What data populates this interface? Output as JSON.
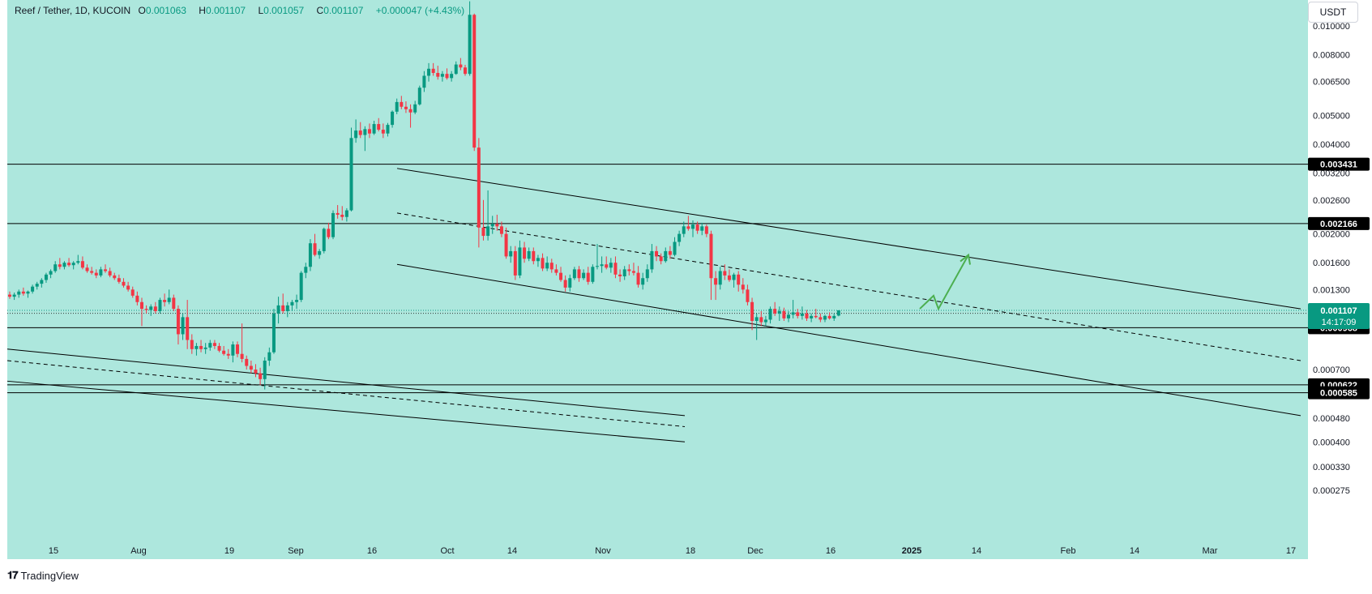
{
  "header": {
    "symbol": "Reef / Tether, 1D, KUCOIN",
    "o_label": "O",
    "o_value": "0.001063",
    "h_label": "H",
    "h_value": "0.001107",
    "l_label": "L",
    "l_value": "0.001057",
    "c_label": "C",
    "c_value": "0.001107",
    "change": "+0.000047 (+4.43%)"
  },
  "currency_button": "USDT",
  "brand": "TradingView",
  "colors": {
    "background": "#ade7dd",
    "up": "#089981",
    "down": "#f23645",
    "line": "#000000",
    "projection": "#4caf50",
    "last_price_bg": "#089981"
  },
  "chart_data": {
    "type": "candlestick",
    "scale": "log",
    "x_axis_labels": [
      "15",
      "Aug",
      "19",
      "Sep",
      "16",
      "Oct",
      "14",
      "Nov",
      "18",
      "Dec",
      "16",
      "2025",
      "14",
      "Feb",
      "14",
      "Mar",
      "17"
    ],
    "y_axis_labels": [
      "0.010000",
      "0.008000",
      "0.006500",
      "0.005000",
      "0.004000",
      "0.003200",
      "0.002600",
      "0.002000",
      "0.001600",
      "0.001300",
      "0.000700",
      "0.000480",
      "0.000400",
      "0.000330",
      "0.000275"
    ],
    "horizontal_levels": [
      {
        "price": 0.003431,
        "label": "0.003431"
      },
      {
        "price": 0.002166,
        "label": "0.002166"
      },
      {
        "price": 0.000968,
        "label": "0.000968"
      },
      {
        "price": 0.000622,
        "label": "0.000622"
      },
      {
        "price": 0.000585,
        "label": "0.000585"
      }
    ],
    "marker_labels": [
      {
        "price": 0.001082,
        "label": "0.001082"
      }
    ],
    "last_price": {
      "price": 0.001107,
      "label": "0.001107",
      "countdown": "14:17:09"
    },
    "candles": [
      [
        0.00125,
        0.00128,
        0.00121,
        0.00123
      ],
      [
        0.00123,
        0.00127,
        0.0012,
        0.00125
      ],
      [
        0.00125,
        0.0013,
        0.00122,
        0.00128
      ],
      [
        0.00128,
        0.00132,
        0.00124,
        0.00126
      ],
      [
        0.00126,
        0.00129,
        0.00122,
        0.00128
      ],
      [
        0.00128,
        0.00135,
        0.00126,
        0.00133
      ],
      [
        0.00133,
        0.00138,
        0.0013,
        0.00136
      ],
      [
        0.00136,
        0.00142,
        0.00132,
        0.0014
      ],
      [
        0.0014,
        0.00148,
        0.00137,
        0.00146
      ],
      [
        0.00146,
        0.00152,
        0.00142,
        0.0015
      ],
      [
        0.0015,
        0.00162,
        0.00148,
        0.00158
      ],
      [
        0.00158,
        0.00166,
        0.00152,
        0.00155
      ],
      [
        0.00155,
        0.00162,
        0.00152,
        0.0016
      ],
      [
        0.0016,
        0.00166,
        0.00155,
        0.00157
      ],
      [
        0.00157,
        0.00162,
        0.00152,
        0.0016
      ],
      [
        0.0016,
        0.0017,
        0.00158,
        0.00162
      ],
      [
        0.00162,
        0.00168,
        0.00152,
        0.00154
      ],
      [
        0.00154,
        0.00158,
        0.00148,
        0.0015
      ],
      [
        0.0015,
        0.00155,
        0.00146,
        0.00148
      ],
      [
        0.00148,
        0.00152,
        0.00142,
        0.00145
      ],
      [
        0.00145,
        0.00155,
        0.00143,
        0.00152
      ],
      [
        0.00152,
        0.00158,
        0.00148,
        0.0015
      ],
      [
        0.0015,
        0.00154,
        0.00143,
        0.00145
      ],
      [
        0.00145,
        0.00148,
        0.0014,
        0.00142
      ],
      [
        0.00142,
        0.00146,
        0.00136,
        0.00138
      ],
      [
        0.00138,
        0.00142,
        0.00132,
        0.00134
      ],
      [
        0.00134,
        0.00138,
        0.00128,
        0.0013
      ],
      [
        0.0013,
        0.00133,
        0.00122,
        0.00124
      ],
      [
        0.00124,
        0.00128,
        0.00115,
        0.00118
      ],
      [
        0.00118,
        0.00122,
        0.00098,
        0.00112
      ],
      [
        0.00112,
        0.00115,
        0.00108,
        0.00111
      ],
      [
        0.00111,
        0.00116,
        0.00106,
        0.00114
      ],
      [
        0.00114,
        0.00118,
        0.00108,
        0.0011
      ],
      [
        0.0011,
        0.00122,
        0.00108,
        0.0012
      ],
      [
        0.0012,
        0.00126,
        0.00114,
        0.00118
      ],
      [
        0.00118,
        0.0013,
        0.00116,
        0.00122
      ],
      [
        0.00122,
        0.00125,
        0.0011,
        0.00112
      ],
      [
        0.00112,
        0.00115,
        0.00085,
        0.00092
      ],
      [
        0.00092,
        0.00108,
        0.00088,
        0.00105
      ],
      [
        0.00105,
        0.0012,
        0.00082,
        0.00088
      ],
      [
        0.00088,
        0.00092,
        0.00079,
        0.00082
      ],
      [
        0.00082,
        0.00086,
        0.00078,
        0.00084
      ],
      [
        0.00084,
        0.00088,
        0.0008,
        0.00082
      ],
      [
        0.00082,
        0.00086,
        0.00079,
        0.00083
      ],
      [
        0.00083,
        0.00088,
        0.00081,
        0.00086
      ],
      [
        0.00086,
        0.00088,
        0.00082,
        0.00084
      ],
      [
        0.00084,
        0.00086,
        0.0008,
        0.00081
      ],
      [
        0.00081,
        0.00084,
        0.00078,
        0.00079
      ],
      [
        0.00079,
        0.00082,
        0.00076,
        0.00078
      ],
      [
        0.00078,
        0.00087,
        0.00074,
        0.00085
      ],
      [
        0.00085,
        0.00087,
        0.00077,
        0.00079
      ],
      [
        0.00079,
        0.001,
        0.00074,
        0.00076
      ],
      [
        0.00076,
        0.00078,
        0.0007,
        0.00072
      ],
      [
        0.00072,
        0.00075,
        0.00068,
        0.0007
      ],
      [
        0.0007,
        0.00073,
        0.00066,
        0.00068
      ],
      [
        0.00068,
        0.00071,
        0.00062,
        0.00065
      ],
      [
        0.00065,
        0.00077,
        0.0006,
        0.00075
      ],
      [
        0.00075,
        0.00083,
        0.00072,
        0.0008
      ],
      [
        0.0008,
        0.00112,
        0.00079,
        0.00108
      ],
      [
        0.00108,
        0.00123,
        0.001,
        0.00115
      ],
      [
        0.00115,
        0.00126,
        0.00108,
        0.0011
      ],
      [
        0.0011,
        0.00118,
        0.00105,
        0.00115
      ],
      [
        0.00115,
        0.0012,
        0.0011,
        0.00118
      ],
      [
        0.00118,
        0.00125,
        0.00112,
        0.0012
      ],
      [
        0.0012,
        0.0015,
        0.00118,
        0.00148
      ],
      [
        0.00148,
        0.0016,
        0.00142,
        0.00155
      ],
      [
        0.00155,
        0.00192,
        0.0015,
        0.00186
      ],
      [
        0.00186,
        0.002,
        0.00168,
        0.0017
      ],
      [
        0.0017,
        0.00178,
        0.00165,
        0.00175
      ],
      [
        0.00175,
        0.0021,
        0.00172,
        0.00208
      ],
      [
        0.00208,
        0.00218,
        0.00192,
        0.00195
      ],
      [
        0.00195,
        0.0024,
        0.00192,
        0.00235
      ],
      [
        0.00235,
        0.0025,
        0.00225,
        0.00232
      ],
      [
        0.00232,
        0.00248,
        0.00222,
        0.00228
      ],
      [
        0.00228,
        0.00244,
        0.0022,
        0.0024
      ],
      [
        0.0024,
        0.00455,
        0.00238,
        0.0042
      ],
      [
        0.0042,
        0.00485,
        0.00405,
        0.00445
      ],
      [
        0.00445,
        0.00475,
        0.0042,
        0.0043
      ],
      [
        0.0043,
        0.0046,
        0.0038,
        0.0045
      ],
      [
        0.0045,
        0.0047,
        0.0042,
        0.00435
      ],
      [
        0.00435,
        0.0048,
        0.0043,
        0.00468
      ],
      [
        0.00468,
        0.0049,
        0.00442,
        0.00448
      ],
      [
        0.00448,
        0.0047,
        0.0042,
        0.00435
      ],
      [
        0.00435,
        0.00472,
        0.00425,
        0.00465
      ],
      [
        0.00465,
        0.0052,
        0.00455,
        0.00515
      ],
      [
        0.00515,
        0.0057,
        0.00505,
        0.00555
      ],
      [
        0.00555,
        0.00582,
        0.00525,
        0.00535
      ],
      [
        0.00535,
        0.00558,
        0.0051,
        0.00525
      ],
      [
        0.00525,
        0.00545,
        0.00455,
        0.00512
      ],
      [
        0.00512,
        0.0056,
        0.00505,
        0.00545
      ],
      [
        0.00545,
        0.0063,
        0.0054,
        0.0062
      ],
      [
        0.0062,
        0.00705,
        0.006,
        0.0068
      ],
      [
        0.0068,
        0.0075,
        0.0065,
        0.00718
      ],
      [
        0.00718,
        0.0075,
        0.0068,
        0.00695
      ],
      [
        0.00695,
        0.00735,
        0.0066,
        0.00675
      ],
      [
        0.00675,
        0.00705,
        0.0065,
        0.0069
      ],
      [
        0.0069,
        0.0072,
        0.0066,
        0.00668
      ],
      [
        0.00668,
        0.00705,
        0.0065,
        0.0069
      ],
      [
        0.0069,
        0.0076,
        0.00685,
        0.00742
      ],
      [
        0.00742,
        0.0078,
        0.0071,
        0.00725
      ],
      [
        0.00725,
        0.0074,
        0.0068,
        0.0069
      ],
      [
        0.0069,
        0.0121,
        0.0068,
        0.0109
      ],
      [
        0.0109,
        0.011,
        0.0038,
        0.0039
      ],
      [
        0.0039,
        0.0042,
        0.0018,
        0.0021
      ],
      [
        0.0021,
        0.0026,
        0.0019,
        0.00197
      ],
      [
        0.00197,
        0.0028,
        0.0019,
        0.00212
      ],
      [
        0.00212,
        0.0023,
        0.002,
        0.00216
      ],
      [
        0.00216,
        0.00232,
        0.00205,
        0.00212
      ],
      [
        0.00212,
        0.0022,
        0.00195,
        0.002
      ],
      [
        0.002,
        0.0021,
        0.00165,
        0.00168
      ],
      [
        0.00168,
        0.00182,
        0.0016,
        0.00175
      ],
      [
        0.00175,
        0.00182,
        0.0014,
        0.00145
      ],
      [
        0.00145,
        0.0019,
        0.00142,
        0.0018
      ],
      [
        0.0018,
        0.00188,
        0.0016,
        0.00165
      ],
      [
        0.00165,
        0.0018,
        0.00162,
        0.00175
      ],
      [
        0.00175,
        0.0018,
        0.00158,
        0.00162
      ],
      [
        0.00162,
        0.0017,
        0.00155,
        0.00166
      ],
      [
        0.00166,
        0.00172,
        0.0015,
        0.00153
      ],
      [
        0.00153,
        0.00168,
        0.0015,
        0.0016
      ],
      [
        0.0016,
        0.00165,
        0.00148,
        0.00152
      ],
      [
        0.00152,
        0.00158,
        0.00145,
        0.00148
      ],
      [
        0.00148,
        0.00155,
        0.00138,
        0.0014
      ],
      [
        0.0014,
        0.00145,
        0.00128,
        0.00132
      ],
      [
        0.00132,
        0.00146,
        0.00128,
        0.00142
      ],
      [
        0.00142,
        0.00155,
        0.0014,
        0.00152
      ],
      [
        0.00152,
        0.00156,
        0.00138,
        0.00142
      ],
      [
        0.00142,
        0.00152,
        0.0014,
        0.00148
      ],
      [
        0.00148,
        0.00155,
        0.00135,
        0.00138
      ],
      [
        0.00138,
        0.00158,
        0.00136,
        0.00155
      ],
      [
        0.00155,
        0.00185,
        0.00152,
        0.00156
      ],
      [
        0.00156,
        0.00168,
        0.00148,
        0.00158
      ],
      [
        0.00158,
        0.00168,
        0.00152,
        0.00154
      ],
      [
        0.00154,
        0.00166,
        0.00148,
        0.0016
      ],
      [
        0.0016,
        0.00168,
        0.00142,
        0.00146
      ],
      [
        0.00146,
        0.00152,
        0.00138,
        0.00144
      ],
      [
        0.00144,
        0.00156,
        0.0014,
        0.00152
      ],
      [
        0.00152,
        0.00158,
        0.00145,
        0.0015
      ],
      [
        0.0015,
        0.0016,
        0.00145,
        0.00148
      ],
      [
        0.00148,
        0.00156,
        0.00132,
        0.00135
      ],
      [
        0.00135,
        0.00148,
        0.0013,
        0.00142
      ],
      [
        0.00142,
        0.00158,
        0.00138,
        0.00152
      ],
      [
        0.00152,
        0.00185,
        0.00148,
        0.00175
      ],
      [
        0.00175,
        0.00182,
        0.00162,
        0.00168
      ],
      [
        0.00168,
        0.00172,
        0.00158,
        0.00162
      ],
      [
        0.00162,
        0.0018,
        0.0016,
        0.00175
      ],
      [
        0.00175,
        0.00182,
        0.00165,
        0.0017
      ],
      [
        0.0017,
        0.00195,
        0.00168,
        0.00188
      ],
      [
        0.00188,
        0.00205,
        0.00182,
        0.002
      ],
      [
        0.002,
        0.0022,
        0.00195,
        0.00212
      ],
      [
        0.00212,
        0.0023,
        0.00205,
        0.00208
      ],
      [
        0.00208,
        0.00222,
        0.00195,
        0.00215
      ],
      [
        0.00215,
        0.0022,
        0.002,
        0.00205
      ],
      [
        0.00205,
        0.00218,
        0.00198,
        0.00212
      ],
      [
        0.00212,
        0.00215,
        0.00195,
        0.002
      ],
      [
        0.002,
        0.00205,
        0.0012,
        0.00142
      ],
      [
        0.00142,
        0.0015,
        0.0012,
        0.00135
      ],
      [
        0.00135,
        0.00155,
        0.0013,
        0.0015
      ],
      [
        0.0015,
        0.00158,
        0.0014,
        0.00145
      ],
      [
        0.00145,
        0.00152,
        0.00138,
        0.0014
      ],
      [
        0.0014,
        0.00148,
        0.00132,
        0.00146
      ],
      [
        0.00146,
        0.0015,
        0.00128,
        0.00135
      ],
      [
        0.00135,
        0.00142,
        0.00126,
        0.0013
      ],
      [
        0.0013,
        0.00135,
        0.00115,
        0.00118
      ],
      [
        0.00118,
        0.00122,
        0.00095,
        0.00102
      ],
      [
        0.00102,
        0.00108,
        0.00088,
        0.00105
      ],
      [
        0.00105,
        0.0011,
        0.00098,
        0.00101
      ],
      [
        0.00101,
        0.00106,
        0.00098,
        0.00103
      ],
      [
        0.00103,
        0.00114,
        0.001,
        0.00112
      ],
      [
        0.00112,
        0.00118,
        0.00106,
        0.00108
      ],
      [
        0.00108,
        0.00114,
        0.00102,
        0.0011
      ],
      [
        0.0011,
        0.00113,
        0.00102,
        0.00104
      ],
      [
        0.00104,
        0.0011,
        0.00101,
        0.00107
      ],
      [
        0.00107,
        0.0012,
        0.00104,
        0.00109
      ],
      [
        0.00109,
        0.00112,
        0.00104,
        0.00106
      ],
      [
        0.00106,
        0.00114,
        0.00103,
        0.00108
      ],
      [
        0.00108,
        0.00111,
        0.00102,
        0.00104
      ],
      [
        0.00104,
        0.00108,
        0.00101,
        0.00106
      ],
      [
        0.00106,
        0.00112,
        0.00104,
        0.00105
      ],
      [
        0.00105,
        0.00108,
        0.00101,
        0.00103
      ],
      [
        0.00103,
        0.00107,
        0.00101,
        0.00106
      ],
      [
        0.00106,
        0.00109,
        0.00103,
        0.00104
      ],
      [
        0.00104,
        0.00108,
        0.00102,
        0.00106
      ],
      [
        0.001063,
        0.001107,
        0.001057,
        0.001107
      ]
    ]
  }
}
